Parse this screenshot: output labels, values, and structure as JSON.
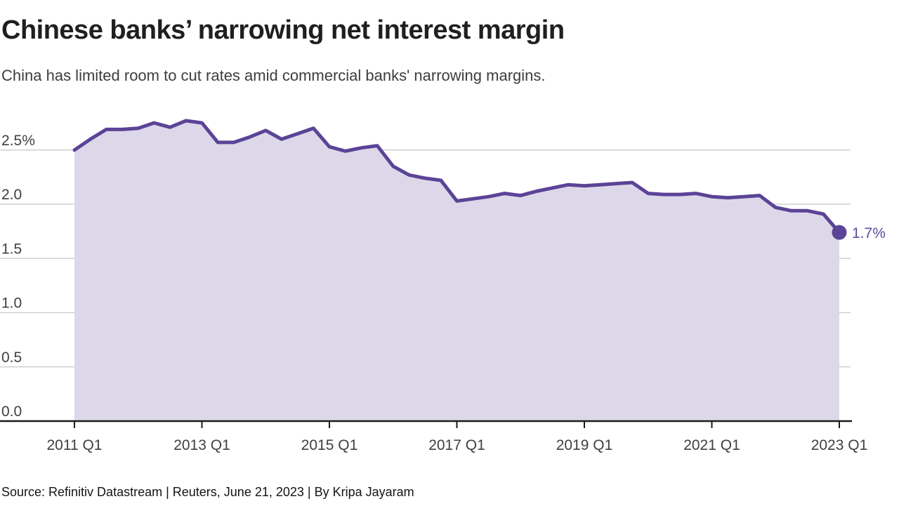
{
  "header": {
    "title": "Chinese banks’ narrowing net interest margin",
    "subtitle": "China has limited room to cut rates amid commercial banks' narrowing margins."
  },
  "footer": {
    "source_line": "Source: Refinitiv Datastream | Reuters, June 21, 2023 | By Kripa Jayaram"
  },
  "chart_data": {
    "type": "area",
    "title": "Chinese banks’ narrowing net interest margin",
    "subtitle": "China has limited room to cut rates amid commercial banks' narrowing margins.",
    "series_name": "Net interest margin of Chinese commercial banks (%)",
    "unit": "%",
    "x": [
      "2011 Q1",
      "2011 Q2",
      "2011 Q3",
      "2011 Q4",
      "2012 Q1",
      "2012 Q2",
      "2012 Q3",
      "2012 Q4",
      "2013 Q1",
      "2013 Q2",
      "2013 Q3",
      "2013 Q4",
      "2014 Q1",
      "2014 Q2",
      "2014 Q3",
      "2014 Q4",
      "2015 Q1",
      "2015 Q2",
      "2015 Q3",
      "2015 Q4",
      "2016 Q1",
      "2016 Q2",
      "2016 Q3",
      "2016 Q4",
      "2017 Q1",
      "2017 Q2",
      "2017 Q3",
      "2017 Q4",
      "2018 Q1",
      "2018 Q2",
      "2018 Q3",
      "2018 Q4",
      "2019 Q1",
      "2019 Q2",
      "2019 Q3",
      "2019 Q4",
      "2020 Q1",
      "2020 Q2",
      "2020 Q3",
      "2020 Q4",
      "2021 Q1",
      "2021 Q2",
      "2021 Q3",
      "2021 Q4",
      "2022 Q1",
      "2022 Q2",
      "2022 Q3",
      "2022 Q4",
      "2023 Q1"
    ],
    "values": [
      2.5,
      2.6,
      2.69,
      2.69,
      2.7,
      2.75,
      2.71,
      2.77,
      2.75,
      2.57,
      2.57,
      2.62,
      2.68,
      2.6,
      2.65,
      2.7,
      2.53,
      2.49,
      2.52,
      2.54,
      2.35,
      2.27,
      2.24,
      2.22,
      2.03,
      2.05,
      2.07,
      2.1,
      2.08,
      2.12,
      2.15,
      2.18,
      2.17,
      2.18,
      2.19,
      2.2,
      2.1,
      2.09,
      2.09,
      2.1,
      2.07,
      2.06,
      2.07,
      2.08,
      1.97,
      1.94,
      1.94,
      1.91,
      1.74
    ],
    "ylim": [
      0.0,
      2.9
    ],
    "yticks": {
      "values": [
        2.5,
        2.0,
        1.5,
        1.0,
        0.5,
        0.0
      ],
      "labels": [
        "2.5%",
        "2.0",
        "1.5",
        "1.0",
        "0.5",
        "0.0"
      ]
    },
    "xticks": {
      "indices": [
        0,
        8,
        16,
        24,
        32,
        40,
        48
      ],
      "labels": [
        "2011 Q1",
        "2013 Q1",
        "2015 Q1",
        "2017 Q1",
        "2019 Q1",
        "2021 Q1",
        "2023 Q1"
      ]
    },
    "end_label": "1.7%",
    "grid": true,
    "legend": false,
    "colors": {
      "line": "#5b4397",
      "fill": "#dcd8e9",
      "grid": "#c8c8c8",
      "axis": "#1a1a1a",
      "tick_text": "#404040",
      "end_label": "#584d9c"
    }
  }
}
